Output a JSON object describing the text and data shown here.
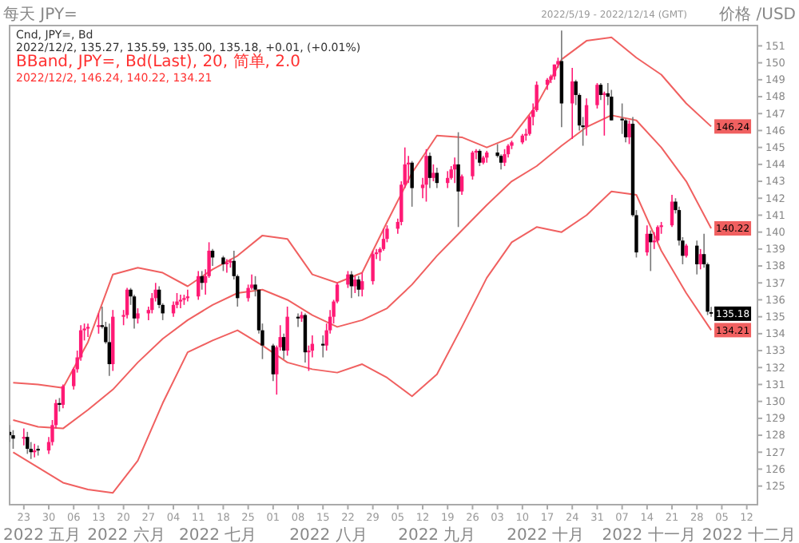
{
  "chart_data": {
    "type": "candlestick",
    "title": "每天 JPY=",
    "subtitle": "2022/5/19 - 2022/12/14 (GMT)",
    "ylabel": "价格 /USD",
    "x": [
      "2022-05-19",
      "2022-05-20",
      "2022-05-23",
      "2022-05-24",
      "2022-05-25",
      "2022-05-26",
      "2022-05-27",
      "2022-05-30",
      "2022-05-31",
      "2022-06-01",
      "2022-06-02",
      "2022-06-03",
      "2022-06-06",
      "2022-06-07",
      "2022-06-08",
      "2022-06-09",
      "2022-06-10",
      "2022-06-13",
      "2022-06-14",
      "2022-06-15",
      "2022-06-16",
      "2022-06-17",
      "2022-06-20",
      "2022-06-21",
      "2022-06-22",
      "2022-06-23",
      "2022-06-24",
      "2022-06-27",
      "2022-06-28",
      "2022-06-29",
      "2022-06-30",
      "2022-07-01",
      "2022-07-04",
      "2022-07-05",
      "2022-07-06",
      "2022-07-07",
      "2022-07-08",
      "2022-07-11",
      "2022-07-12",
      "2022-07-13",
      "2022-07-14",
      "2022-07-15",
      "2022-07-18",
      "2022-07-19",
      "2022-07-20",
      "2022-07-21",
      "2022-07-22",
      "2022-07-25",
      "2022-07-26",
      "2022-07-27",
      "2022-07-28",
      "2022-07-29",
      "2022-08-01",
      "2022-08-02",
      "2022-08-03",
      "2022-08-04",
      "2022-08-05",
      "2022-08-08",
      "2022-08-09",
      "2022-08-10",
      "2022-08-11",
      "2022-08-12",
      "2022-08-15",
      "2022-08-16",
      "2022-08-17",
      "2022-08-18",
      "2022-08-19",
      "2022-08-22",
      "2022-08-23",
      "2022-08-24",
      "2022-08-25",
      "2022-08-26",
      "2022-08-29",
      "2022-08-30",
      "2022-08-31",
      "2022-09-01",
      "2022-09-02",
      "2022-09-05",
      "2022-09-06",
      "2022-09-07",
      "2022-09-08",
      "2022-09-09",
      "2022-09-12",
      "2022-09-13",
      "2022-09-14",
      "2022-09-15",
      "2022-09-16",
      "2022-09-19",
      "2022-09-20",
      "2022-09-21",
      "2022-09-22",
      "2022-09-23",
      "2022-09-26",
      "2022-09-27",
      "2022-09-28",
      "2022-09-29",
      "2022-09-30",
      "2022-10-03",
      "2022-10-04",
      "2022-10-05",
      "2022-10-06",
      "2022-10-07",
      "2022-10-10",
      "2022-10-11",
      "2022-10-12",
      "2022-10-13",
      "2022-10-14",
      "2022-10-17",
      "2022-10-18",
      "2022-10-19",
      "2022-10-20",
      "2022-10-21",
      "2022-10-24",
      "2022-10-25",
      "2022-10-26",
      "2022-10-27",
      "2022-10-28",
      "2022-10-31",
      "2022-11-01",
      "2022-11-02",
      "2022-11-03",
      "2022-11-04",
      "2022-11-07",
      "2022-11-08",
      "2022-11-09",
      "2022-11-10",
      "2022-11-11",
      "2022-11-14",
      "2022-11-15",
      "2022-11-16",
      "2022-11-17",
      "2022-11-18",
      "2022-11-21",
      "2022-11-22",
      "2022-11-23",
      "2022-11-24",
      "2022-11-25",
      "2022-11-28",
      "2022-11-29",
      "2022-11-30",
      "2022-12-01",
      "2022-12-02"
    ],
    "ohlc": [
      [
        128.2,
        128.6,
        127.6,
        128.0
      ],
      [
        128.0,
        128.3,
        127.2,
        127.8
      ],
      [
        127.8,
        128.4,
        127.4,
        127.9
      ],
      [
        127.9,
        128.2,
        126.9,
        127.2
      ],
      [
        127.2,
        127.6,
        126.6,
        127.0
      ],
      [
        127.0,
        127.5,
        126.7,
        127.1
      ],
      [
        127.2,
        127.4,
        126.8,
        127.1
      ],
      [
        127.1,
        127.9,
        126.9,
        127.6
      ],
      [
        127.6,
        128.9,
        127.4,
        128.6
      ],
      [
        128.6,
        130.1,
        128.4,
        129.9
      ],
      [
        129.9,
        130.2,
        129.4,
        129.8
      ],
      [
        129.8,
        131.0,
        129.6,
        130.9
      ],
      [
        130.9,
        132.0,
        130.7,
        131.9
      ],
      [
        131.9,
        133.0,
        131.7,
        132.6
      ],
      [
        132.6,
        134.5,
        132.4,
        134.2
      ],
      [
        134.2,
        134.6,
        133.6,
        134.3
      ],
      [
        134.3,
        134.6,
        133.8,
        134.4
      ],
      [
        134.4,
        135.2,
        134.0,
        134.5
      ],
      [
        134.5,
        135.6,
        134.3,
        134.4
      ],
      [
        134.4,
        134.7,
        133.4,
        133.5
      ],
      [
        133.5,
        134.6,
        131.5,
        132.2
      ],
      [
        132.2,
        135.4,
        131.8,
        135.0
      ],
      [
        135.0,
        135.4,
        134.5,
        135.1
      ],
      [
        135.1,
        136.7,
        134.9,
        136.6
      ],
      [
        136.6,
        136.7,
        135.7,
        136.2
      ],
      [
        136.2,
        136.3,
        134.3,
        134.9
      ],
      [
        134.9,
        135.5,
        134.6,
        135.2
      ],
      [
        135.2,
        135.6,
        134.8,
        135.4
      ],
      [
        135.4,
        136.4,
        135.2,
        136.1
      ],
      [
        136.1,
        137.0,
        135.9,
        136.6
      ],
      [
        136.6,
        136.8,
        135.5,
        135.7
      ],
      [
        135.7,
        135.8,
        134.8,
        135.2
      ],
      [
        135.2,
        135.9,
        135.0,
        135.7
      ],
      [
        135.7,
        136.4,
        135.5,
        135.9
      ],
      [
        135.9,
        136.3,
        135.5,
        136.0
      ],
      [
        136.0,
        136.3,
        135.7,
        136.1
      ],
      [
        136.1,
        136.6,
        135.9,
        136.2
      ],
      [
        136.2,
        137.7,
        136.0,
        137.4
      ],
      [
        137.4,
        137.7,
        136.6,
        137.0
      ],
      [
        137.0,
        137.8,
        136.3,
        137.4
      ],
      [
        137.4,
        139.4,
        137.3,
        138.9
      ],
      [
        138.9,
        139.0,
        138.0,
        138.5
      ],
      [
        138.5,
        138.6,
        137.7,
        138.1
      ],
      [
        138.1,
        138.4,
        137.6,
        138.2
      ],
      [
        138.2,
        138.4,
        137.9,
        138.3
      ],
      [
        138.3,
        138.9,
        137.2,
        137.4
      ],
      [
        137.4,
        137.5,
        135.6,
        136.1
      ],
      [
        136.1,
        136.9,
        135.9,
        136.7
      ],
      [
        136.7,
        137.5,
        136.6,
        136.9
      ],
      [
        136.9,
        137.4,
        136.2,
        136.6
      ],
      [
        136.6,
        136.6,
        134.0,
        134.2
      ],
      [
        134.2,
        134.6,
        132.5,
        133.3
      ],
      [
        133.3,
        133.4,
        131.2,
        131.6
      ],
      [
        131.6,
        133.3,
        130.4,
        133.2
      ],
      [
        133.2,
        134.5,
        133.0,
        133.8
      ],
      [
        133.8,
        134.0,
        132.5,
        133.0
      ],
      [
        133.0,
        135.6,
        132.7,
        135.0
      ],
      [
        135.0,
        135.2,
        134.4,
        134.9
      ],
      [
        134.9,
        135.3,
        134.7,
        135.1
      ],
      [
        135.1,
        135.2,
        132.3,
        132.9
      ],
      [
        132.9,
        133.3,
        131.8,
        133.0
      ],
      [
        133.0,
        133.9,
        132.6,
        133.4
      ],
      [
        133.4,
        133.9,
        132.6,
        133.3
      ],
      [
        133.3,
        134.6,
        133.0,
        134.2
      ],
      [
        134.2,
        135.4,
        134.0,
        135.0
      ],
      [
        135.0,
        136.0,
        134.6,
        135.9
      ],
      [
        135.9,
        137.0,
        135.8,
        136.9
      ],
      [
        136.9,
        137.7,
        136.7,
        137.5
      ],
      [
        137.5,
        137.7,
        136.1,
        136.8
      ],
      [
        136.8,
        137.4,
        136.4,
        137.2
      ],
      [
        137.2,
        137.4,
        136.2,
        136.6
      ],
      [
        136.6,
        137.6,
        136.2,
        137.1
      ],
      [
        137.1,
        138.9,
        136.9,
        138.7
      ],
      [
        138.7,
        139.0,
        138.4,
        138.8
      ],
      [
        138.8,
        139.1,
        138.3,
        139.0
      ],
      [
        139.0,
        140.2,
        138.9,
        139.6
      ],
      [
        139.6,
        140.4,
        139.4,
        140.2
      ],
      [
        140.2,
        140.8,
        139.9,
        140.6
      ],
      [
        140.6,
        143.0,
        140.4,
        142.8
      ],
      [
        142.8,
        145.0,
        142.6,
        144.0
      ],
      [
        144.0,
        144.5,
        142.9,
        144.1
      ],
      [
        144.1,
        144.2,
        141.5,
        142.6
      ],
      [
        142.6,
        143.2,
        142.0,
        142.8
      ],
      [
        142.8,
        144.9,
        141.8,
        144.5
      ],
      [
        144.5,
        144.7,
        142.6,
        143.2
      ],
      [
        143.2,
        144.0,
        143.0,
        143.5
      ],
      [
        143.5,
        143.8,
        142.6,
        142.9
      ],
      [
        142.9,
        143.6,
        142.6,
        143.2
      ],
      [
        143.2,
        143.9,
        143.1,
        143.7
      ],
      [
        143.7,
        144.4,
        142.9,
        144.0
      ],
      [
        144.0,
        145.9,
        140.3,
        142.4
      ],
      [
        142.4,
        143.4,
        142.2,
        143.3
      ],
      [
        143.3,
        144.8,
        143.1,
        144.7
      ],
      [
        144.7,
        144.9,
        144.3,
        144.8
      ],
      [
        144.8,
        144.9,
        143.9,
        144.1
      ],
      [
        144.1,
        144.5,
        144.0,
        144.4
      ],
      [
        144.4,
        144.8,
        144.1,
        144.7
      ],
      [
        144.7,
        145.2,
        144.4,
        144.5
      ],
      [
        144.5,
        144.6,
        143.7,
        144.1
      ],
      [
        144.1,
        144.9,
        143.9,
        144.6
      ],
      [
        144.6,
        145.2,
        144.4,
        145.1
      ],
      [
        145.1,
        145.4,
        144.9,
        145.3
      ],
      [
        145.3,
        145.8,
        145.2,
        145.7
      ],
      [
        145.7,
        146.1,
        145.4,
        145.8
      ],
      [
        145.8,
        146.9,
        145.7,
        146.8
      ],
      [
        146.8,
        147.6,
        146.3,
        147.2
      ],
      [
        147.2,
        148.9,
        147.1,
        148.7
      ],
      [
        148.7,
        149.1,
        148.4,
        149.0
      ],
      [
        149.0,
        149.3,
        148.8,
        149.2
      ],
      [
        149.2,
        149.9,
        149.0,
        149.9
      ],
      [
        149.9,
        150.3,
        149.7,
        150.1
      ],
      [
        150.1,
        151.9,
        146.2,
        147.6
      ],
      [
        147.6,
        149.7,
        145.5,
        148.9
      ],
      [
        148.9,
        149.0,
        147.5,
        148.1
      ],
      [
        148.1,
        148.2,
        146.0,
        146.3
      ],
      [
        146.3,
        146.8,
        145.1,
        146.2
      ],
      [
        146.2,
        147.9,
        145.7,
        147.5
      ],
      [
        147.5,
        148.8,
        147.3,
        148.7
      ],
      [
        148.7,
        148.8,
        147.8,
        148.1
      ],
      [
        148.1,
        148.3,
        145.7,
        148.2
      ],
      [
        148.2,
        148.8,
        147.5,
        148.0
      ],
      [
        148.0,
        148.4,
        146.6,
        146.6
      ],
      [
        146.7,
        147.6,
        145.8,
        146.6
      ],
      [
        146.6,
        146.7,
        145.3,
        145.6
      ],
      [
        145.6,
        146.6,
        145.2,
        146.4
      ],
      [
        146.4,
        146.8,
        140.9,
        141.0
      ],
      [
        141.0,
        141.3,
        138.5,
        138.8
      ],
      [
        138.8,
        140.4,
        138.6,
        139.9
      ],
      [
        139.9,
        140.1,
        137.7,
        139.4
      ],
      [
        139.4,
        140.0,
        139.0,
        139.5
      ],
      [
        139.5,
        140.4,
        139.4,
        140.3
      ],
      [
        140.3,
        140.6,
        139.9,
        140.4
      ],
      [
        140.4,
        142.2,
        140.3,
        141.8
      ],
      [
        141.8,
        142.0,
        141.1,
        141.3
      ],
      [
        141.3,
        141.5,
        139.2,
        139.5
      ],
      [
        139.5,
        139.7,
        138.1,
        138.6
      ],
      [
        138.6,
        139.3,
        138.5,
        139.2
      ],
      [
        139.2,
        139.5,
        137.5,
        138.1
      ],
      [
        138.1,
        139.0,
        137.8,
        138.7
      ],
      [
        138.7,
        139.9,
        137.9,
        138.1
      ],
      [
        138.1,
        138.2,
        135.1,
        135.3
      ],
      [
        135.27,
        135.59,
        135.0,
        135.18
      ]
    ],
    "colors": [
      "#000000",
      "#000000",
      "#ff1a75",
      "#000000",
      "#000000",
      "#ff1a75",
      "#000000",
      "#ff1a75",
      "#ff1a75",
      "#ff1a75",
      "#000000",
      "#ff1a75",
      "#ff1a75",
      "#ff1a75",
      "#ff1a75",
      "#ff1a75",
      "#ff1a75",
      "#ff1a75",
      "#000000",
      "#000000",
      "#000000",
      "#ff1a75",
      "#ff1a75",
      "#ff1a75",
      "#000000",
      "#000000",
      "#ff1a75",
      "#ff1a75",
      "#ff1a75",
      "#ff1a75",
      "#000000",
      "#000000",
      "#ff1a75",
      "#ff1a75",
      "#ff1a75",
      "#ff1a75",
      "#ff1a75",
      "#ff1a75",
      "#000000",
      "#ff1a75",
      "#ff1a75",
      "#000000",
      "#000000",
      "#ff1a75",
      "#ff1a75",
      "#000000",
      "#000000",
      "#ff1a75",
      "#ff1a75",
      "#000000",
      "#000000",
      "#000000",
      "#000000",
      "#ff1a75",
      "#ff1a75",
      "#000000",
      "#ff1a75",
      "#000000",
      "#ff1a75",
      "#000000",
      "#ff1a75",
      "#ff1a75",
      "#000000",
      "#ff1a75",
      "#ff1a75",
      "#ff1a75",
      "#ff1a75",
      "#ff1a75",
      "#000000",
      "#ff1a75",
      "#000000",
      "#ff1a75",
      "#ff1a75",
      "#ff1a75",
      "#ff1a75",
      "#ff1a75",
      "#ff1a75",
      "#ff1a75",
      "#ff1a75",
      "#ff1a75",
      "#ff1a75",
      "#000000",
      "#ff1a75",
      "#ff1a75",
      "#000000",
      "#ff1a75",
      "#000000",
      "#ff1a75",
      "#ff1a75",
      "#ff1a75",
      "#000000",
      "#ff1a75",
      "#ff1a75",
      "#ff1a75",
      "#000000",
      "#ff1a75",
      "#ff1a75",
      "#000000",
      "#000000",
      "#ff1a75",
      "#ff1a75",
      "#ff1a75",
      "#ff1a75",
      "#ff1a75",
      "#ff1a75",
      "#ff1a75",
      "#ff1a75",
      "#ff1a75",
      "#ff1a75",
      "#ff1a75",
      "#ff1a75",
      "#000000",
      "#ff1a75",
      "#000000",
      "#000000",
      "#000000",
      "#ff1a75",
      "#ff1a75",
      "#000000",
      "#ff1a75",
      "#000000",
      "#000000",
      "#000000",
      "#000000",
      "#ff1a75",
      "#000000",
      "#000000",
      "#ff1a75",
      "#000000",
      "#ff1a75",
      "#ff1a75",
      "#ff1a75",
      "#ff1a75",
      "#000000",
      "#000000",
      "#000000",
      "#ff1a75",
      "#000000",
      "#ff1a75",
      "#000000",
      "#000000",
      "#000000"
    ],
    "series": [
      {
        "type": "line",
        "color": "#f06060",
        "x": [
          "2022-05-20",
          "2022-05-27",
          "2022-06-03",
          "2022-06-10",
          "2022-06-17",
          "2022-06-24",
          "2022-07-01",
          "2022-07-08",
          "2022-07-15",
          "2022-07-22",
          "2022-07-29",
          "2022-08-05",
          "2022-08-12",
          "2022-08-19",
          "2022-08-26",
          "2022-09-02",
          "2022-09-09",
          "2022-09-16",
          "2022-09-23",
          "2022-09-30",
          "2022-10-07",
          "2022-10-14",
          "2022-10-21",
          "2022-10-28",
          "2022-11-04",
          "2022-11-11",
          "2022-11-18",
          "2022-11-25",
          "2022-12-02"
        ],
        "values": [
          131.1,
          131.0,
          130.8,
          133.5,
          137.5,
          137.9,
          137.6,
          136.8,
          137.8,
          138.6,
          139.8,
          139.6,
          137.5,
          137.0,
          137.6,
          140.6,
          143.5,
          145.7,
          145.6,
          145.0,
          145.6,
          147.5,
          150.2,
          151.3,
          151.5,
          150.3,
          149.3,
          147.6,
          146.24
        ],
        "value_labels": [
          null,
          null,
          null,
          null,
          null,
          null,
          null,
          null,
          null,
          null,
          null,
          null,
          null,
          null,
          null,
          null,
          null,
          null,
          null,
          null,
          null,
          null,
          null,
          null,
          null,
          null,
          null,
          null,
          "146.24"
        ]
      },
      {
        "type": "line",
        "color": "#f06060",
        "x": [
          "2022-05-20",
          "2022-05-27",
          "2022-06-03",
          "2022-06-10",
          "2022-06-17",
          "2022-06-24",
          "2022-07-01",
          "2022-07-08",
          "2022-07-15",
          "2022-07-22",
          "2022-07-29",
          "2022-08-05",
          "2022-08-12",
          "2022-08-19",
          "2022-08-26",
          "2022-09-02",
          "2022-09-09",
          "2022-09-16",
          "2022-09-23",
          "2022-09-30",
          "2022-10-07",
          "2022-10-14",
          "2022-10-21",
          "2022-10-28",
          "2022-11-04",
          "2022-11-11",
          "2022-11-18",
          "2022-11-25",
          "2022-12-02"
        ],
        "values": [
          128.9,
          128.5,
          128.4,
          129.5,
          130.7,
          132.3,
          133.7,
          134.8,
          135.7,
          136.4,
          136.6,
          136.0,
          135.1,
          134.4,
          134.8,
          135.5,
          136.9,
          138.6,
          140.1,
          141.6,
          143.0,
          143.9,
          145.1,
          146.2,
          146.9,
          146.6,
          145.0,
          143.0,
          140.22
        ],
        "value_labels": [
          null,
          null,
          null,
          null,
          null,
          null,
          null,
          null,
          null,
          null,
          null,
          null,
          null,
          null,
          null,
          null,
          null,
          null,
          null,
          null,
          null,
          null,
          null,
          null,
          null,
          null,
          null,
          null,
          "140.22"
        ]
      },
      {
        "type": "line",
        "color": "#f06060",
        "x": [
          "2022-05-20",
          "2022-05-27",
          "2022-06-03",
          "2022-06-10",
          "2022-06-17",
          "2022-06-24",
          "2022-07-01",
          "2022-07-08",
          "2022-07-15",
          "2022-07-22",
          "2022-07-29",
          "2022-08-05",
          "2022-08-12",
          "2022-08-19",
          "2022-08-26",
          "2022-09-02",
          "2022-09-09",
          "2022-09-16",
          "2022-09-23",
          "2022-09-30",
          "2022-10-07",
          "2022-10-14",
          "2022-10-21",
          "2022-10-28",
          "2022-11-04",
          "2022-11-11",
          "2022-11-18",
          "2022-11-25",
          "2022-12-02"
        ],
        "values": [
          127.0,
          126.1,
          125.2,
          124.8,
          124.6,
          126.5,
          129.9,
          132.9,
          133.6,
          134.2,
          133.3,
          132.3,
          131.9,
          131.7,
          132.2,
          131.4,
          130.3,
          131.6,
          134.4,
          137.3,
          139.4,
          140.3,
          140.0,
          141.0,
          142.4,
          142.2,
          138.9,
          136.4,
          134.21
        ],
        "value_labels": [
          null,
          null,
          null,
          null,
          null,
          null,
          null,
          null,
          null,
          null,
          null,
          null,
          null,
          null,
          null,
          null,
          null,
          null,
          null,
          null,
          null,
          null,
          null,
          null,
          null,
          null,
          null,
          null,
          "134.21"
        ]
      }
    ],
    "xlim": [
      "2022-05-19",
      "2022-12-15"
    ],
    "xticks": [
      {
        "value": "2022-05-23",
        "label": "23"
      },
      {
        "value": "2022-05-30",
        "label": "30"
      },
      {
        "value": "2022-06-06",
        "label": "06"
      },
      {
        "value": "2022-06-13",
        "label": "13"
      },
      {
        "value": "2022-06-20",
        "label": "20"
      },
      {
        "value": "2022-06-27",
        "label": "27"
      },
      {
        "value": "2022-07-04",
        "label": "04"
      },
      {
        "value": "2022-07-11",
        "label": "11"
      },
      {
        "value": "2022-07-18",
        "label": "18"
      },
      {
        "value": "2022-07-25",
        "label": "25"
      },
      {
        "value": "2022-08-01",
        "label": "01"
      },
      {
        "value": "2022-08-08",
        "label": "08"
      },
      {
        "value": "2022-08-15",
        "label": "15"
      },
      {
        "value": "2022-08-22",
        "label": "22"
      },
      {
        "value": "2022-08-29",
        "label": "29"
      },
      {
        "value": "2022-09-05",
        "label": "05"
      },
      {
        "value": "2022-09-12",
        "label": "12"
      },
      {
        "value": "2022-09-19",
        "label": "19"
      },
      {
        "value": "2022-09-26",
        "label": "26"
      },
      {
        "value": "2022-10-03",
        "label": "03"
      },
      {
        "value": "2022-10-10",
        "label": "10"
      },
      {
        "value": "2022-10-17",
        "label": "17"
      },
      {
        "value": "2022-10-24",
        "label": "24"
      },
      {
        "value": "2022-10-31",
        "label": "31"
      },
      {
        "value": "2022-11-07",
        "label": "07"
      },
      {
        "value": "2022-11-14",
        "label": "14"
      },
      {
        "value": "2022-11-21",
        "label": "21"
      },
      {
        "value": "2022-11-28",
        "label": "28"
      },
      {
        "value": "2022-12-05",
        "label": "05"
      },
      {
        "value": "2022-12-12",
        "label": "12"
      }
    ],
    "ylim": [
      123.9,
      152.2
    ],
    "yticks": [
      125,
      126,
      127,
      128,
      129,
      130,
      131,
      132,
      133,
      134,
      135,
      136,
      137,
      138,
      139,
      140,
      141,
      142,
      143,
      144,
      145,
      146,
      147,
      148,
      149,
      150,
      151
    ],
    "annotations": [
      "Cnd, JPY=, Bd",
      "2022/12/2, 135.27, 135.59, 135.00, 135.18, +0.01, (+0.01%)",
      "BBand, JPY=, Bd(Last), 20, 简单, 2.0",
      "2022/12/2, 146.24, 140.22, 134.21",
      "2022 五月",
      "2022 六月",
      "2022 七月",
      "2022 八月",
      "2022 九月",
      "2022 十月",
      "2022 十一月",
      "2022 十二月"
    ],
    "value_labels": [
      null,
      null,
      null,
      null,
      null,
      null,
      null,
      null,
      null,
      null,
      null,
      null,
      null,
      null,
      null,
      null,
      null,
      null,
      null,
      null,
      null,
      null,
      null,
      null,
      null,
      null,
      null,
      null,
      null,
      null,
      null,
      null,
      null,
      null,
      null,
      null,
      null,
      null,
      null,
      null,
      null,
      null,
      null,
      null,
      null,
      null,
      null,
      null,
      null,
      null,
      null,
      null,
      null,
      null,
      null,
      null,
      null,
      null,
      null,
      null,
      null,
      null,
      null,
      null,
      null,
      null,
      null,
      null,
      null,
      null,
      null,
      null,
      null,
      null,
      null,
      null,
      null,
      null,
      null,
      null,
      null,
      null,
      null,
      null,
      null,
      null,
      null,
      null,
      null,
      null,
      null,
      null,
      null,
      null,
      null,
      null,
      null,
      null,
      null,
      null,
      null,
      null,
      null,
      null,
      null,
      null,
      null,
      null,
      null,
      null,
      null,
      null,
      null,
      null,
      null,
      null,
      null,
      null,
      null,
      null,
      null,
      null,
      null,
      null,
      null,
      null,
      null,
      null,
      null,
      null,
      null,
      null,
      null,
      null,
      null,
      null,
      null,
      null,
      null,
      null,
      null,
      "135.18"
    ]
  }
}
